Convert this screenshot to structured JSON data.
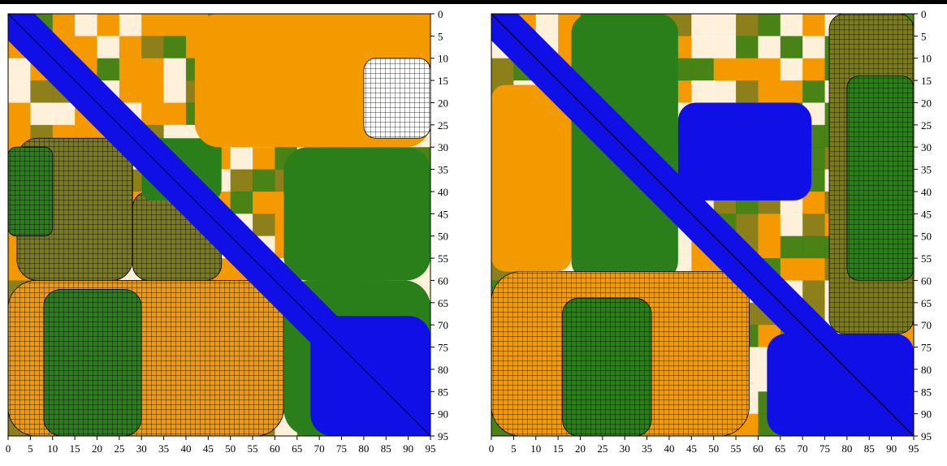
{
  "chart_data": [
    {
      "type": "heatmap",
      "title": "",
      "xlabel": "",
      "ylabel": "",
      "x_ticks": [
        0,
        5,
        10,
        15,
        20,
        25,
        30,
        35,
        40,
        45,
        50,
        55,
        60,
        65,
        70,
        75,
        80,
        85,
        90,
        95
      ],
      "y_ticks": [
        0,
        5,
        10,
        15,
        20,
        25,
        30,
        35,
        40,
        45,
        50,
        55,
        60,
        65,
        70,
        75,
        80,
        85,
        90,
        95
      ],
      "x_range": [
        0,
        95
      ],
      "y_range": [
        0,
        95
      ],
      "y_axis": "right, increasing downward",
      "color_levels": [
        "blue",
        "green",
        "olive",
        "orange",
        "white",
        "white-hatched",
        "orange-hatched",
        "olive-hatched",
        "green-hatched"
      ],
      "colors": {
        "blue": "#1010e6",
        "green": "#2a7f1a",
        "olive": "#7a7a1f",
        "orange": "#f39a00",
        "white": "#ffffff"
      },
      "diagonal": "blue band along x = y",
      "regions": [
        {
          "x": [
            2,
            28
          ],
          "y": [
            28,
            60
          ],
          "level": "olive-hatched"
        },
        {
          "x": [
            0,
            10
          ],
          "y": [
            30,
            50
          ],
          "level": "green-hatched"
        },
        {
          "x": [
            28,
            48
          ],
          "y": [
            40,
            60
          ],
          "level": "olive-hatched"
        },
        {
          "x": [
            0,
            62
          ],
          "y": [
            60,
            95
          ],
          "level": "orange-hatched"
        },
        {
          "x": [
            8,
            30
          ],
          "y": [
            62,
            95
          ],
          "level": "green-hatched"
        },
        {
          "x": [
            30,
            48
          ],
          "y": [
            28,
            42
          ],
          "level": "green"
        },
        {
          "x": [
            42,
            95
          ],
          "y": [
            0,
            30
          ],
          "level": "orange"
        },
        {
          "x": [
            62,
            95
          ],
          "y": [
            30,
            60
          ],
          "level": "green"
        },
        {
          "x": [
            62,
            95
          ],
          "y": [
            60,
            95
          ],
          "level": "green"
        },
        {
          "x": [
            68,
            95
          ],
          "y": [
            68,
            95
          ],
          "level": "blue"
        },
        {
          "x": [
            80,
            95
          ],
          "y": [
            10,
            28
          ],
          "level": "white-hatched"
        }
      ]
    },
    {
      "type": "heatmap",
      "title": "",
      "xlabel": "",
      "ylabel": "",
      "x_ticks": [
        0,
        5,
        10,
        15,
        20,
        25,
        30,
        35,
        40,
        45,
        50,
        55,
        60,
        65,
        70,
        75,
        80,
        85,
        90,
        95
      ],
      "y_ticks": [
        0,
        5,
        10,
        15,
        20,
        25,
        30,
        35,
        40,
        45,
        50,
        55,
        60,
        65,
        70,
        75,
        80,
        85,
        90,
        95
      ],
      "x_range": [
        0,
        95
      ],
      "y_range": [
        0,
        95
      ],
      "y_axis": "right, increasing downward",
      "color_levels": [
        "blue",
        "green",
        "olive",
        "orange",
        "white",
        "white-hatched",
        "orange-hatched",
        "olive-hatched",
        "green-hatched"
      ],
      "colors": {
        "blue": "#1010e6",
        "green": "#2a7f1a",
        "olive": "#7a7a1f",
        "orange": "#f39a00",
        "white": "#ffffff"
      },
      "diagonal": "blue band along x = y",
      "regions": [
        {
          "x": [
            18,
            42
          ],
          "y": [
            0,
            60
          ],
          "level": "green"
        },
        {
          "x": [
            42,
            72
          ],
          "y": [
            20,
            42
          ],
          "level": "blue"
        },
        {
          "x": [
            0,
            58
          ],
          "y": [
            58,
            95
          ],
          "level": "orange-hatched"
        },
        {
          "x": [
            16,
            36
          ],
          "y": [
            64,
            95
          ],
          "level": "green-hatched"
        },
        {
          "x": [
            76,
            95
          ],
          "y": [
            0,
            72
          ],
          "level": "olive-hatched"
        },
        {
          "x": [
            80,
            95
          ],
          "y": [
            14,
            60
          ],
          "level": "green-hatched"
        },
        {
          "x": [
            62,
            95
          ],
          "y": [
            72,
            95
          ],
          "level": "blue"
        },
        {
          "x": [
            0,
            18
          ],
          "y": [
            16,
            58
          ],
          "level": "orange"
        }
      ]
    }
  ]
}
